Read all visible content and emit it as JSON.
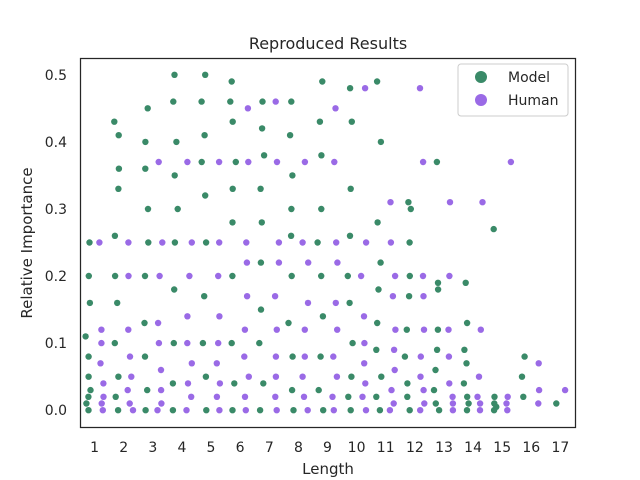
{
  "chart_data": {
    "type": "scatter",
    "subtype": "strip",
    "title": "Reproduced Results",
    "xlabel": "Length",
    "ylabel": "Relative Importance",
    "categories": [
      "1",
      "2",
      "3",
      "4",
      "5",
      "6",
      "7",
      "8",
      "9",
      "10",
      "11",
      "12",
      "13",
      "14",
      "15",
      "16",
      "17"
    ],
    "yticks": [
      "0.0",
      "0.1",
      "0.2",
      "0.3",
      "0.4",
      "0.5"
    ],
    "ylim": [
      -0.025,
      0.525
    ],
    "grid": false,
    "legend": {
      "position": "top-right"
    },
    "series": [
      {
        "name": "Model",
        "color": "#3a8a68",
        "max_values": [
          0.25,
          0.43,
          0.45,
          0.5,
          0.5,
          0.49,
          0.46,
          0.46,
          0.49,
          0.48,
          0.49,
          0.31,
          0.37,
          0.19,
          0.27,
          0.08,
          0.01
        ],
        "sample_values": [
          [
            0.0,
            0.01,
            0.02,
            0.03,
            0.05,
            0.08,
            0.11,
            0.16,
            0.2,
            0.25
          ],
          [
            0.0,
            0.02,
            0.05,
            0.1,
            0.16,
            0.2,
            0.26,
            0.33,
            0.36,
            0.41,
            0.43
          ],
          [
            0.0,
            0.03,
            0.08,
            0.13,
            0.2,
            0.25,
            0.3,
            0.36,
            0.4,
            0.45
          ],
          [
            0.0,
            0.04,
            0.1,
            0.18,
            0.25,
            0.3,
            0.35,
            0.4,
            0.46,
            0.5
          ],
          [
            0.0,
            0.05,
            0.1,
            0.17,
            0.25,
            0.32,
            0.37,
            0.41,
            0.46,
            0.5
          ],
          [
            0.0,
            0.04,
            0.1,
            0.2,
            0.28,
            0.33,
            0.37,
            0.43,
            0.46,
            0.49
          ],
          [
            0.0,
            0.04,
            0.1,
            0.15,
            0.22,
            0.28,
            0.33,
            0.38,
            0.42,
            0.46
          ],
          [
            0.0,
            0.03,
            0.08,
            0.13,
            0.2,
            0.26,
            0.3,
            0.35,
            0.41,
            0.46
          ],
          [
            0.0,
            0.03,
            0.08,
            0.14,
            0.2,
            0.25,
            0.3,
            0.38,
            0.43,
            0.49
          ],
          [
            0.0,
            0.02,
            0.05,
            0.1,
            0.16,
            0.2,
            0.26,
            0.33,
            0.43,
            0.48
          ],
          [
            0.0,
            0.02,
            0.05,
            0.09,
            0.13,
            0.18,
            0.22,
            0.28,
            0.4,
            0.49
          ],
          [
            0.0,
            0.02,
            0.04,
            0.08,
            0.12,
            0.17,
            0.2,
            0.25,
            0.3,
            0.31
          ],
          [
            0.0,
            0.01,
            0.03,
            0.06,
            0.09,
            0.12,
            0.18,
            0.19,
            0.37
          ],
          [
            0.0,
            0.01,
            0.02,
            0.04,
            0.07,
            0.09,
            0.13,
            0.19
          ],
          [
            0.0,
            0.005,
            0.01,
            0.02,
            0.27
          ],
          [
            0.02,
            0.05,
            0.08
          ],
          [
            0.01
          ]
        ]
      },
      {
        "name": "Human",
        "color": "#9a6ae6",
        "max_values": [
          0.25,
          0.25,
          0.37,
          0.37,
          0.37,
          0.45,
          0.46,
          0.37,
          0.45,
          0.48,
          0.31,
          0.48,
          0.31,
          0.31,
          0.37,
          0.07,
          0.03
        ],
        "sample_values": [
          [
            0.0,
            0.01,
            0.02,
            0.04,
            0.07,
            0.1,
            0.12,
            0.25
          ],
          [
            0.0,
            0.01,
            0.03,
            0.05,
            0.08,
            0.12,
            0.2,
            0.25
          ],
          [
            0.0,
            0.01,
            0.03,
            0.06,
            0.1,
            0.13,
            0.2,
            0.25,
            0.37
          ],
          [
            0.0,
            0.02,
            0.04,
            0.07,
            0.1,
            0.14,
            0.2,
            0.25,
            0.37
          ],
          [
            0.0,
            0.02,
            0.04,
            0.07,
            0.1,
            0.14,
            0.2,
            0.25,
            0.37
          ],
          [
            0.0,
            0.02,
            0.05,
            0.08,
            0.12,
            0.17,
            0.22,
            0.25,
            0.37,
            0.45
          ],
          [
            0.0,
            0.02,
            0.05,
            0.08,
            0.12,
            0.17,
            0.22,
            0.25,
            0.37,
            0.46
          ],
          [
            0.0,
            0.02,
            0.05,
            0.08,
            0.12,
            0.16,
            0.22,
            0.25,
            0.37
          ],
          [
            0.0,
            0.02,
            0.05,
            0.08,
            0.12,
            0.16,
            0.22,
            0.25,
            0.37,
            0.45
          ],
          [
            0.0,
            0.02,
            0.04,
            0.07,
            0.1,
            0.14,
            0.2,
            0.25,
            0.48
          ],
          [
            0.0,
            0.01,
            0.03,
            0.06,
            0.09,
            0.12,
            0.17,
            0.2,
            0.25,
            0.31
          ],
          [
            0.0,
            0.01,
            0.03,
            0.05,
            0.08,
            0.12,
            0.17,
            0.2,
            0.37,
            0.48
          ],
          [
            0.0,
            0.01,
            0.02,
            0.04,
            0.08,
            0.12,
            0.2,
            0.31
          ],
          [
            0.0,
            0.01,
            0.02,
            0.05,
            0.12,
            0.31
          ],
          [
            0.0,
            0.01,
            0.02,
            0.37
          ],
          [
            0.01,
            0.03,
            0.07
          ],
          [
            0.03
          ]
        ]
      }
    ]
  }
}
